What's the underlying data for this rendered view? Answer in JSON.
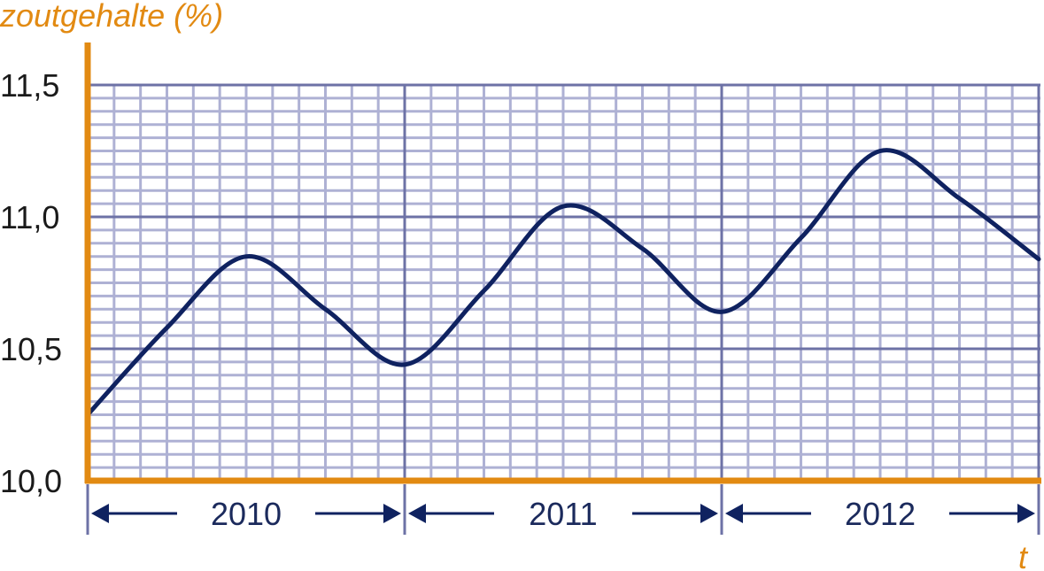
{
  "chart_data": {
    "type": "line",
    "ylabel": "zoutgehalte (%)",
    "xlabel": "t",
    "ylim": [
      10.0,
      11.5
    ],
    "xlim": [
      0,
      3
    ],
    "y_ticks": [
      {
        "value": 10.0,
        "label": "10,0"
      },
      {
        "value": 10.5,
        "label": "10,5"
      },
      {
        "value": 11.0,
        "label": "11,0"
      },
      {
        "value": 11.5,
        "label": "11,5"
      }
    ],
    "categories": [
      "2010",
      "2011",
      "2012"
    ],
    "grid": true,
    "series": [
      {
        "x": [
          0,
          0.25,
          0.5,
          0.75,
          1.0,
          1.25,
          1.5,
          1.75,
          2.0,
          2.25,
          2.5,
          2.75,
          3.0
        ],
        "values": [
          10.25,
          10.58,
          10.85,
          10.65,
          10.44,
          10.72,
          11.04,
          10.88,
          10.64,
          10.92,
          11.25,
          11.07,
          10.84
        ]
      }
    ],
    "colors": {
      "axis": "#e28a12",
      "curve": "#0f2260",
      "major_grid": "#6d72a6",
      "minor_grid": "#aeb1d4"
    }
  }
}
